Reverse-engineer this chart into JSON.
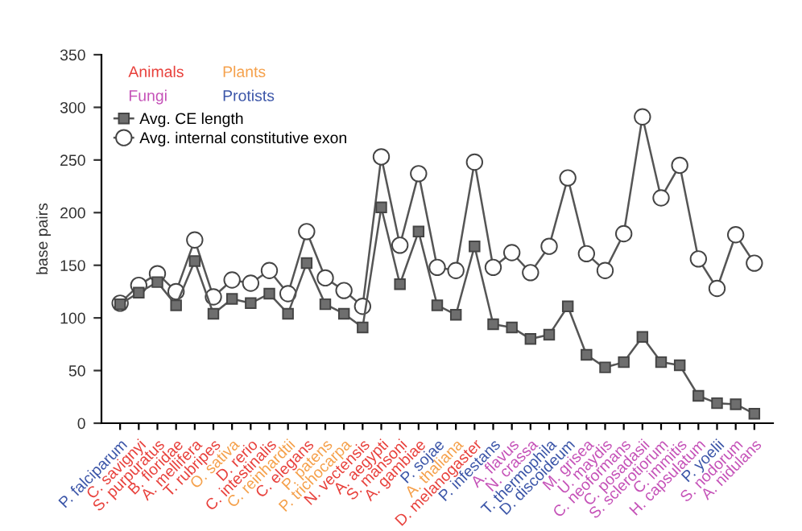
{
  "chart_data": {
    "type": "line",
    "ylabel": "base pairs",
    "categories": [
      "P. falciparum",
      "C. savignyi",
      "S. purpuratus",
      "B. floridae",
      "A. mellifera",
      "T. rubripes",
      "O. sativa",
      "D. rerio",
      "C. intestinalis",
      "C. reinhardtii",
      "C. elegans",
      "P. patens",
      "P. trichocarpa",
      "N. vectensis",
      "A. aegypti",
      "S. mansoni",
      "A. gambiae",
      "P. sojae",
      "A. thaliana",
      "D. melanogaster",
      "P. infestans",
      "A. flavus",
      "N. crassa",
      "T. thermophila",
      "D. discoideum",
      "M. grisea",
      "U. maydis",
      "C. neoformans",
      "C. posadasii",
      "S. sclerotiorum",
      "C. immitis",
      "H. capsulatum",
      "P. yoelii",
      "S. nodorum",
      "A. nidulans"
    ],
    "colors": [
      "#3b55a8",
      "#e8413c",
      "#e8413c",
      "#e8413c",
      "#e8413c",
      "#e8413c",
      "#f5a04a",
      "#e8413c",
      "#e8413c",
      "#f5a04a",
      "#e8413c",
      "#f5a04a",
      "#f5a04a",
      "#e8413c",
      "#e8413c",
      "#e8413c",
      "#e8413c",
      "#3b55a8",
      "#f5a04a",
      "#e8413c",
      "#3b55a8",
      "#c552b8",
      "#c552b8",
      "#3b55a8",
      "#3b55a8",
      "#c552b8",
      "#c552b8",
      "#c552b8",
      "#c552b8",
      "#c552b8",
      "#c552b8",
      "#c552b8",
      "#3b55a8",
      "#c552b8",
      "#c552b8"
    ],
    "annotations": [
      "Animals",
      "Plants",
      "Fungi",
      "Protists"
    ],
    "series": [
      {
        "name": "Avg. CE length",
        "color": "#6e6e6e",
        "marker": "square",
        "values": [
          113,
          124,
          134,
          112,
          154,
          104,
          118,
          114,
          123,
          104,
          152,
          113,
          104,
          91,
          205,
          132,
          182,
          112,
          103,
          168,
          94,
          91,
          80,
          84,
          111,
          65,
          53,
          58,
          82,
          58,
          55,
          26,
          19,
          18,
          9
        ]
      },
      {
        "name": "Avg. internal constitutive exon",
        "color": "#ffffff",
        "marker": "circle",
        "values": [
          114,
          131,
          142,
          125,
          174,
          120,
          136,
          133,
          145,
          123,
          182,
          138,
          126,
          111,
          253,
          169,
          237,
          148,
          145,
          248,
          148,
          162,
          143,
          168,
          233,
          161,
          145,
          180,
          291,
          214,
          245,
          156,
          128,
          179,
          152
        ]
      }
    ],
    "ylim": [
      0,
      350
    ],
    "yticks": [
      0,
      50,
      100,
      150,
      200,
      250,
      300,
      350
    ],
    "grid": false,
    "legend": "top left",
    "line_style": "solid"
  }
}
